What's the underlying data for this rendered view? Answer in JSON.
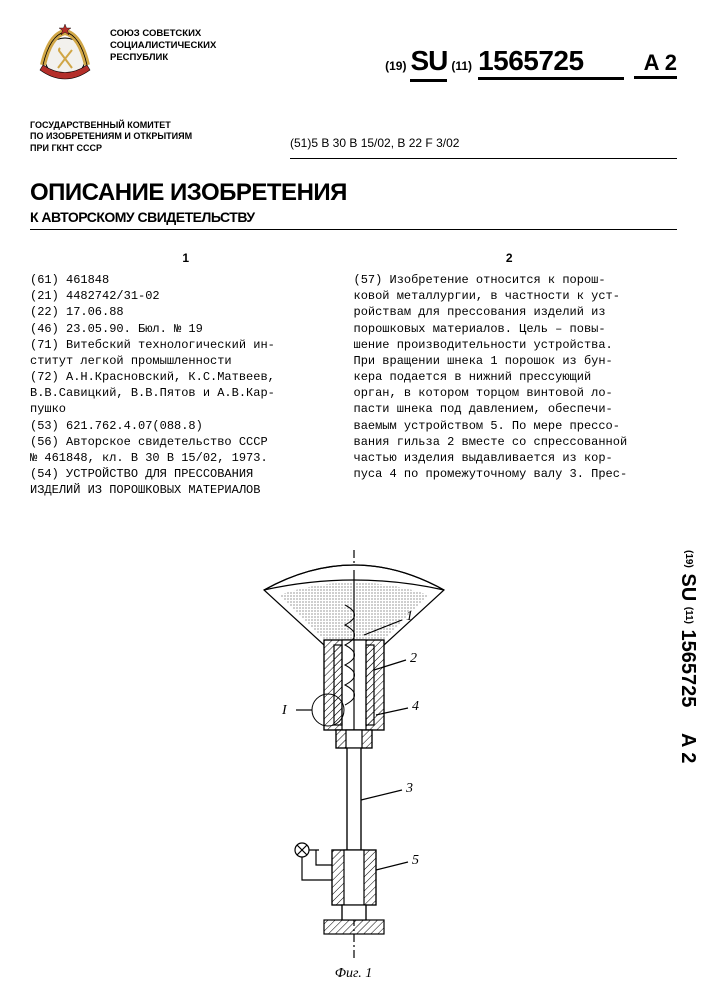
{
  "emblem": {
    "colors": {
      "banner": "#b42f2a",
      "gold": "#d0a646",
      "globe": "#f2f1ed"
    }
  },
  "issuer_top": "СОЮЗ СОВЕТСКИХ\nСОЦИАЛИСТИЧЕСКИХ\nРЕСПУБЛИК",
  "pubnum": {
    "pre": "(19)",
    "cc": "SU",
    "post": "(11)",
    "number": "1565725",
    "kind": "A 2"
  },
  "ipc_line": "(51)5 B 30 B 15/02, B 22 F 3/02",
  "committee": "ГОСУДАРСТВЕННЫЙ КОМИТЕТ\nПО ИЗОБРЕТЕНИЯМ И ОТКРЫТИЯМ\nПРИ ГКНТ СССР",
  "heading": "ОПИСАНИЕ ИЗОБРЕТЕНИЯ",
  "subheading": "К АВТОРСКОМУ СВИДЕТЕЛЬСТВУ",
  "col1_no": "1",
  "col2_no": "2",
  "biblio": [
    "(61) 461848",
    "(21) 4482742/31-02",
    "(22) 17.06.88",
    "(46) 23.05.90. Бюл. № 19",
    "(71) Витебский технологический ин-",
    "ститут легкой промышленности",
    "(72) А.Н.Красновский, К.С.Матвеев,",
    "В.В.Савицкий, В.В.Пятов и А.В.Кар-",
    "пушко",
    "(53) 621.762.4.07(088.8)",
    "(56) Авторское свидетельство СССР",
    "№ 461848, кл. B 30 B 15/02, 1973.",
    "(54) УСТРОЙСТВО ДЛЯ ПРЕССОВАНИЯ",
    "ИЗДЕЛИЙ ИЗ ПОРОШКОВЫХ МАТЕРИАЛОВ"
  ],
  "abstract": [
    "(57) Изобретение относится к порош-",
    "ковой металлургии, в частности к уст-",
    "ройствам для прессования изделий из",
    "порошковых материалов. Цель – повы-",
    "шение производительности устройства.",
    "При вращении шнека 1 порошок из бун-",
    "кера подается в нижний прессующий",
    "орган, в котором торцом винтовой ло-",
    "пасти шнека под давлением, обеспечи-",
    "ваемым устройством 5. По мере прессо-",
    "вания гильза 2 вместе со спрессованной",
    "частью изделия выдавливается из кор-",
    "пуса 4 по промежуточному валу 3. Прес-"
  ],
  "figure": {
    "caption": "Фиг. 1",
    "callouts": {
      "1": "1",
      "2": "2",
      "3": "3",
      "4": "4",
      "5": "5",
      "I": "I"
    },
    "colors": {
      "stroke": "#000000",
      "hatch": "#000000",
      "dotfill": "#555555"
    }
  },
  "side_label": {
    "pre": "(19)",
    "cc": "SU",
    "post": "(11)",
    "number": "1565725",
    "kind": "A 2"
  }
}
